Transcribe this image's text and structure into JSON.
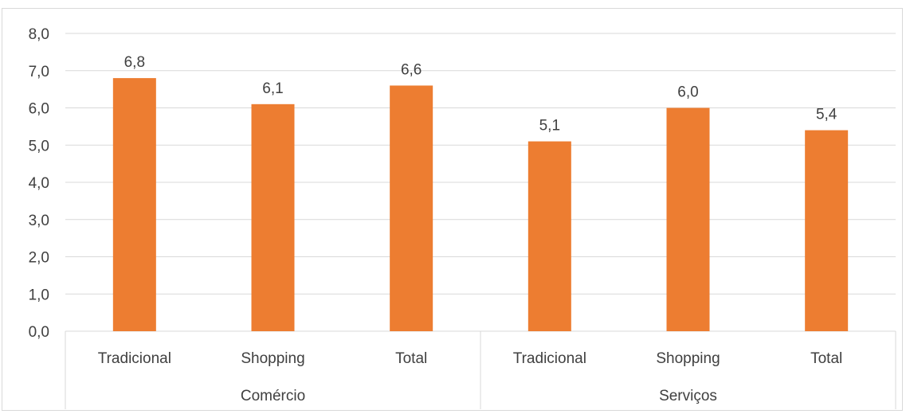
{
  "chart_data": {
    "type": "bar",
    "title": "",
    "xlabel": "",
    "ylabel": "",
    "ylim": [
      0,
      8
    ],
    "yticks": [
      "0,0",
      "1,0",
      "2,0",
      "3,0",
      "4,0",
      "5,0",
      "6,0",
      "7,0",
      "8,0"
    ],
    "grid": true,
    "bar_color": "#ED7D31",
    "groups": [
      {
        "label": "Comércio",
        "categories": [
          "Tradicional",
          "Shopping",
          "Total"
        ]
      },
      {
        "label": "Serviços",
        "categories": [
          "Tradicional",
          "Shopping",
          "Total"
        ]
      }
    ],
    "categories": [
      "Tradicional",
      "Shopping",
      "Total",
      "Tradicional",
      "Shopping",
      "Total"
    ],
    "values": [
      6.8,
      6.1,
      6.6,
      5.1,
      6.0,
      5.4
    ],
    "value_labels": [
      "6,8",
      "6,1",
      "6,6",
      "5,1",
      "6,0",
      "5,4"
    ]
  }
}
